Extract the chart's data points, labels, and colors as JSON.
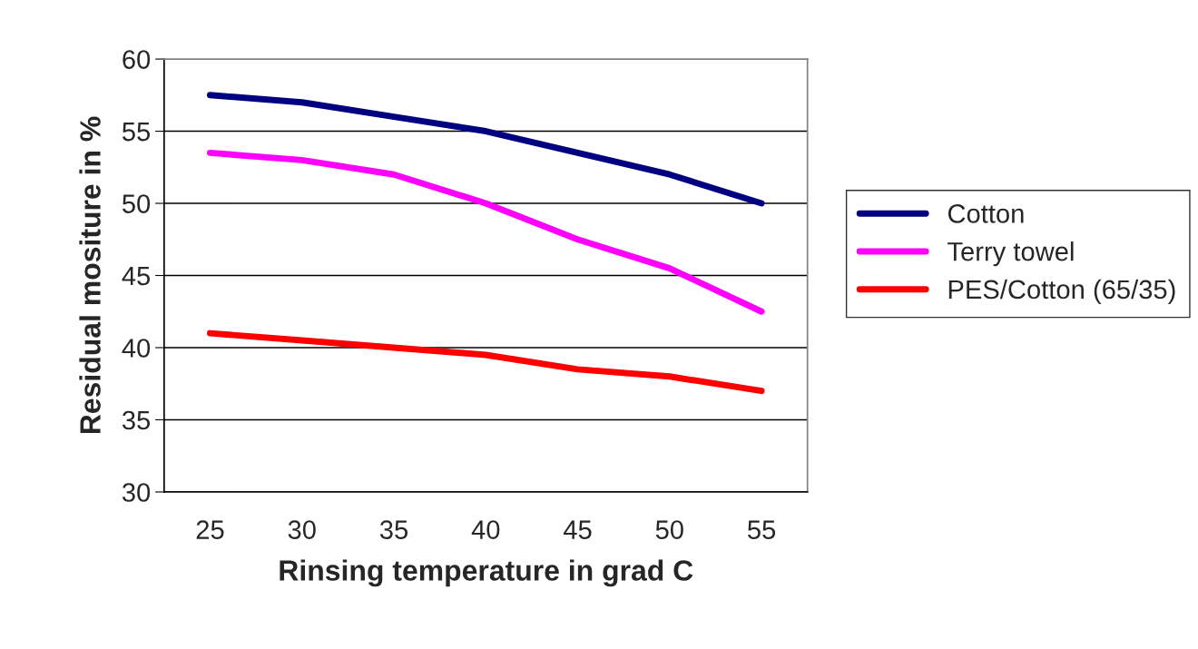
{
  "chart_data": {
    "type": "line",
    "xlabel": "Rinsing temperature in grad C",
    "ylabel": "Residual mositure in %",
    "categories": [
      "25",
      "30",
      "35",
      "40",
      "45",
      "50",
      "55"
    ],
    "series": [
      {
        "name": "Cotton",
        "color": "#000080",
        "values": [
          57.5,
          57.0,
          56.0,
          55.0,
          53.5,
          52.0,
          50.0
        ]
      },
      {
        "name": "Terry towel",
        "color": "#ff00ff",
        "values": [
          53.5,
          53.0,
          52.0,
          50.0,
          47.5,
          45.5,
          42.5
        ]
      },
      {
        "name": "PES/Cotton (65/35)",
        "color": "#ff0000",
        "values": [
          41.0,
          40.5,
          40.0,
          39.5,
          38.5,
          38.0,
          37.0
        ]
      }
    ],
    "ylim": [
      30,
      60
    ],
    "yticks": [
      30,
      35,
      40,
      45,
      50,
      55,
      60
    ],
    "grid": "y",
    "legend": "right",
    "marker": "none",
    "line_style": "solid"
  }
}
